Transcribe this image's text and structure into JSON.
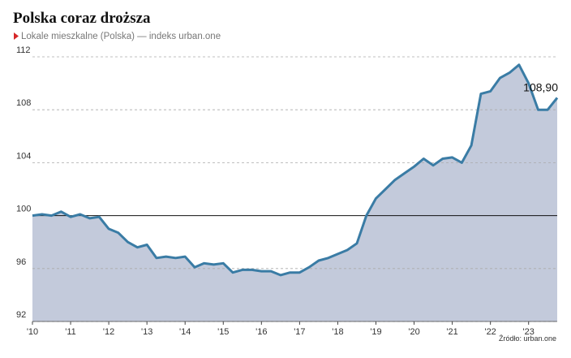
{
  "chart_data": {
    "type": "area",
    "title": "Polska coraz droższa",
    "subtitle": "Lokale mieszkalne (Polska) — indeks urban.one",
    "source": "Źródło: urban.one",
    "color": "#3a7ca5",
    "fill": "#c3cadb",
    "x": [
      2010,
      2010.25,
      2010.5,
      2010.75,
      2011,
      2011.25,
      2011.5,
      2011.75,
      2012,
      2012.25,
      2012.5,
      2012.75,
      2013,
      2013.25,
      2013.5,
      2013.75,
      2014,
      2014.25,
      2014.5,
      2014.75,
      2015,
      2015.25,
      2015.5,
      2015.75,
      2016,
      2016.25,
      2016.5,
      2016.75,
      2017,
      2017.25,
      2017.5,
      2017.75,
      2018,
      2018.25,
      2018.5,
      2018.75,
      2019,
      2019.25,
      2019.5,
      2019.75,
      2020,
      2020.25,
      2020.5,
      2020.75,
      2021,
      2021.25,
      2021.5,
      2021.75,
      2022,
      2022.25,
      2022.5,
      2022.75,
      2023,
      2023.25,
      2023.5,
      2023.75
    ],
    "values": [
      100.0,
      100.1,
      100.0,
      100.3,
      99.9,
      100.1,
      99.8,
      99.9,
      99.0,
      98.7,
      98.0,
      97.6,
      97.8,
      96.8,
      96.9,
      96.8,
      96.9,
      96.1,
      96.4,
      96.3,
      96.4,
      95.7,
      95.9,
      95.9,
      95.8,
      95.8,
      95.5,
      95.7,
      95.7,
      96.1,
      96.6,
      96.8,
      97.1,
      97.4,
      97.9,
      100.0,
      101.3,
      102.0,
      102.7,
      103.2,
      103.7,
      104.3,
      103.8,
      104.3,
      104.4,
      104.0,
      105.3,
      109.2,
      109.4,
      110.4,
      110.8,
      111.4,
      110.0,
      108.0,
      108.0,
      108.9
    ],
    "value_labels": [
      null,
      null,
      null,
      null,
      null,
      null,
      null,
      null,
      null,
      null,
      null,
      null,
      null,
      null,
      null,
      null,
      null,
      null,
      null,
      null,
      null,
      null,
      null,
      null,
      null,
      null,
      null,
      null,
      null,
      null,
      null,
      null,
      null,
      null,
      null,
      null,
      null,
      null,
      null,
      null,
      null,
      null,
      null,
      null,
      null,
      null,
      null,
      null,
      null,
      null,
      null,
      null,
      null,
      null,
      null,
      "108,90"
    ],
    "xlim": [
      2010,
      2023.75
    ],
    "xticks": [
      {
        "value": 2010,
        "label": "'10"
      },
      {
        "value": 2011,
        "label": "'11"
      },
      {
        "value": 2012,
        "label": "'12"
      },
      {
        "value": 2013,
        "label": "'13"
      },
      {
        "value": 2014,
        "label": "'14"
      },
      {
        "value": 2015,
        "label": "'15"
      },
      {
        "value": 2016,
        "label": "'16"
      },
      {
        "value": 2017,
        "label": "'17"
      },
      {
        "value": 2018,
        "label": "'18"
      },
      {
        "value": 2019,
        "label": "'19"
      },
      {
        "value": 2020,
        "label": "'20"
      },
      {
        "value": 2021,
        "label": "'21"
      },
      {
        "value": 2022,
        "label": "'22"
      },
      {
        "value": 2023,
        "label": "'23"
      }
    ],
    "ylim": [
      92,
      112
    ],
    "yticks": [
      92,
      96,
      100,
      104,
      108,
      112
    ],
    "baseline": 100,
    "grid": true
  }
}
